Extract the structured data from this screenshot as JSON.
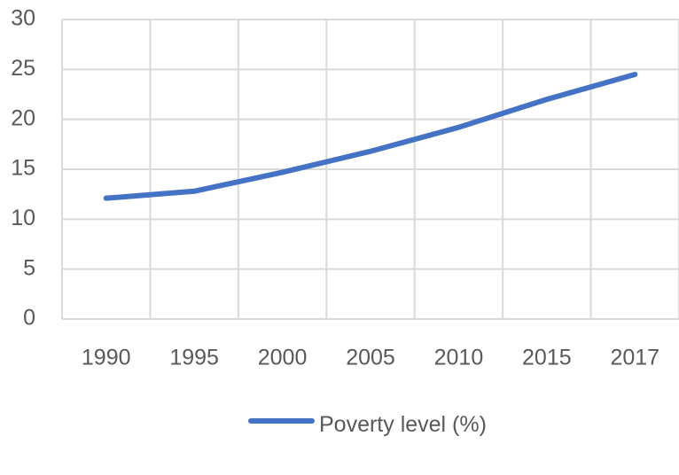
{
  "chart_data": {
    "type": "line",
    "categories": [
      "1990",
      "1995",
      "2000",
      "2005",
      "2010",
      "2015",
      "2017"
    ],
    "series": [
      {
        "name": "Poverty level (%)",
        "color": "#4472c4",
        "values": [
          12.1,
          12.8,
          14.7,
          16.8,
          19.2,
          22.0,
          24.5
        ]
      }
    ],
    "ylim": [
      0,
      30
    ],
    "yticks": [
      0,
      5,
      10,
      15,
      20,
      25,
      30
    ],
    "grid": true,
    "legend": "bottom"
  }
}
